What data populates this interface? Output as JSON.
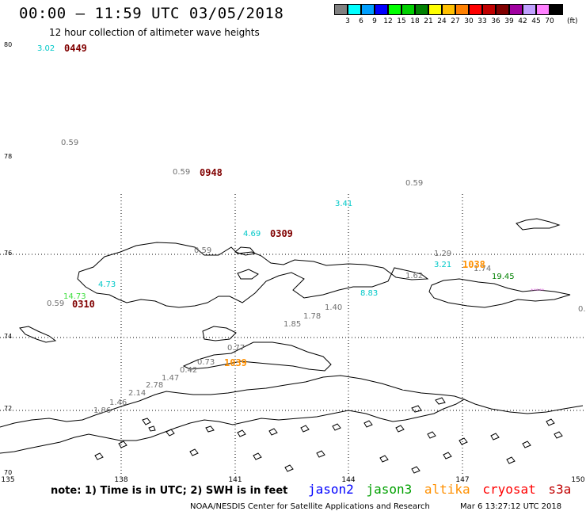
{
  "header": {
    "title": "00:00 – 11:59 UTC 03/05/2018",
    "subtitle": "12 hour collection of altimeter wave heights"
  },
  "colorbar": {
    "unit": "(ft)",
    "bins": [
      {
        "label": "3",
        "color": "#808080"
      },
      {
        "label": "6",
        "color": "#00ffff"
      },
      {
        "label": "9",
        "color": "#00a0ff"
      },
      {
        "label": "12",
        "color": "#0000ff"
      },
      {
        "label": "15",
        "color": "#00ff00"
      },
      {
        "label": "18",
        "color": "#00d000"
      },
      {
        "label": "21",
        "color": "#008000"
      },
      {
        "label": "24",
        "color": "#ffff00"
      },
      {
        "label": "27",
        "color": "#ffc000"
      },
      {
        "label": "30",
        "color": "#ff8000"
      },
      {
        "label": "33",
        "color": "#ff0000"
      },
      {
        "label": "36",
        "color": "#c00000"
      },
      {
        "label": "39",
        "color": "#800000"
      },
      {
        "label": "42",
        "color": "#a000a0"
      },
      {
        "label": "45",
        "color": "#c0a0ff"
      },
      {
        "label": "70",
        "color": "#ff80ff"
      },
      {
        "label": "",
        "color": "#000000"
      }
    ]
  },
  "axes": {
    "lat_labels": [
      "80",
      "78",
      "76",
      "74",
      "72",
      "70"
    ],
    "lon_labels": [
      "135",
      "138",
      "141",
      "144",
      "147",
      "150"
    ]
  },
  "wave_heights": [
    {
      "text": "3.02",
      "color": "#00c8c8"
    },
    {
      "text": "0.59",
      "color": "#707070"
    },
    {
      "text": "0.59",
      "color": "#707070"
    },
    {
      "text": "0.59",
      "color": "#707070"
    },
    {
      "text": "3.41",
      "color": "#00c8c8"
    },
    {
      "text": "4.69",
      "color": "#00c8c8"
    },
    {
      "text": "0.59",
      "color": "#707070"
    },
    {
      "text": "1.29",
      "color": "#707070"
    },
    {
      "text": "3.21",
      "color": "#00c8c8"
    },
    {
      "text": "1.74",
      "color": "#707070"
    },
    {
      "text": "19.45",
      "color": "#008000"
    },
    {
      "text": "1.62",
      "color": "#707070"
    },
    {
      "text": "8.83",
      "color": "#00c8c8"
    },
    {
      "text": "4.73",
      "color": "#00c8c8"
    },
    {
      "text": "14.73",
      "color": "#40e040"
    },
    {
      "text": "0.59",
      "color": "#707070"
    },
    {
      "text": "1.40",
      "color": "#707070"
    },
    {
      "text": "1.78",
      "color": "#707070"
    },
    {
      "text": "1.85",
      "color": "#707070"
    },
    {
      "text": "0.77",
      "color": "#707070"
    },
    {
      "text": "0.73",
      "color": "#707070"
    },
    {
      "text": "0.42",
      "color": "#707070"
    },
    {
      "text": "1.47",
      "color": "#707070"
    },
    {
      "text": "2.78",
      "color": "#707070"
    },
    {
      "text": "2.14",
      "color": "#707070"
    },
    {
      "text": "1.46",
      "color": "#707070"
    },
    {
      "text": "1.86",
      "color": "#707070"
    },
    {
      "text": "*****",
      "color": "#e070e0"
    },
    {
      "text": "0.",
      "color": "#707070"
    }
  ],
  "pass_times": [
    {
      "text": "0449",
      "color": "#800000"
    },
    {
      "text": "0948",
      "color": "#800000"
    },
    {
      "text": "0309",
      "color": "#800000"
    },
    {
      "text": "0310",
      "color": "#800000"
    },
    {
      "text": "1038",
      "color": "#ff9000"
    },
    {
      "text": "1039",
      "color": "#ff9000"
    }
  ],
  "footer": {
    "note": "note: 1) Time is in UTC; 2) SWH is in feet",
    "missions": [
      {
        "name": "jason2",
        "color": "#0000ff"
      },
      {
        "name": "jason3",
        "color": "#00a000"
      },
      {
        "name": "altika",
        "color": "#ff9000"
      },
      {
        "name": "cryosat",
        "color": "#ff0000"
      },
      {
        "name": "s3a",
        "color": "#c00000"
      }
    ],
    "credit": "NOAA/NESDIS Center for Satellite Applications and Research",
    "timestamp": "Mar  6 13:27:12 UTC 2018"
  }
}
